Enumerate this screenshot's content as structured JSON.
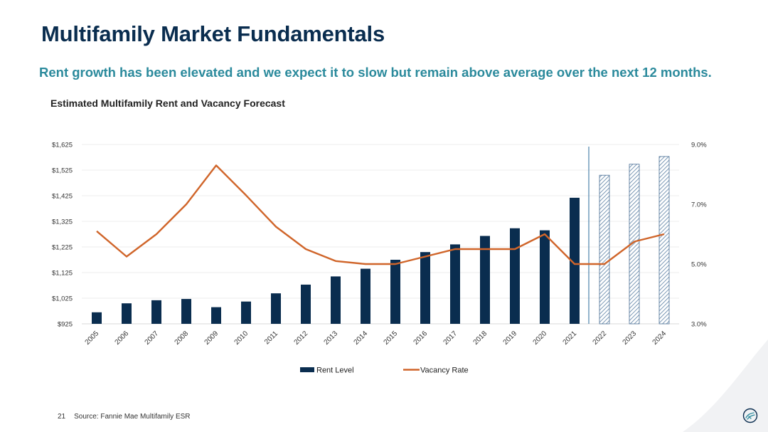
{
  "page": {
    "title": "Multifamily Market Fundamentals",
    "subtitle": "Rent growth has been elevated and we expect it to slow but remain above average over the next 12 months.",
    "chart_title": "Estimated Multifamily Rent and Vacancy Forecast",
    "page_number": "21",
    "source": "Source: Fannie Mae Multifamily ESR"
  },
  "colors": {
    "title": "#0a2d4f",
    "subtitle": "#2b8a9c",
    "rent_bar": "#0a2d4f",
    "vacancy_line": "#d0652a",
    "forecast_divider": "#2a6a9a"
  },
  "chart_data": {
    "type": "bar",
    "title": "Estimated Multifamily Rent and Vacancy Forecast",
    "categories": [
      "2005",
      "2006",
      "2007",
      "2008",
      "2009",
      "2010",
      "2011",
      "2012",
      "2013",
      "2014",
      "2015",
      "2016",
      "2017",
      "2018",
      "2019",
      "2020",
      "2021",
      "2022",
      "2023",
      "2024"
    ],
    "forecast_from": "2022",
    "series": [
      {
        "name": "Rent Level",
        "type": "bar",
        "axis": "left",
        "values": [
          970,
          1005,
          1017,
          1022,
          990,
          1012,
          1044,
          1078,
          1110,
          1140,
          1175,
          1205,
          1235,
          1268,
          1298,
          1290,
          1417,
          1505,
          1548,
          1578
        ]
      },
      {
        "name": "Vacancy Rate",
        "type": "line",
        "axis": "right",
        "values": [
          6.1,
          5.25,
          6.0,
          7.0,
          8.3,
          7.3,
          6.25,
          5.5,
          5.1,
          5.0,
          5.0,
          5.25,
          5.5,
          5.5,
          5.5,
          6.0,
          5.0,
          5.0,
          5.75,
          6.0
        ]
      }
    ],
    "y_left": {
      "min": 925,
      "max": 1625,
      "ticks": [
        "$925",
        "$1,025",
        "$1,125",
        "$1,225",
        "$1,325",
        "$1,425",
        "$1,525",
        "$1,625"
      ]
    },
    "y_right": {
      "min": 3.0,
      "max": 9.0,
      "ticks": [
        "3.0%",
        "5.0%",
        "7.0%",
        "9.0%"
      ]
    },
    "grid": true,
    "legend": "bottom-center"
  }
}
